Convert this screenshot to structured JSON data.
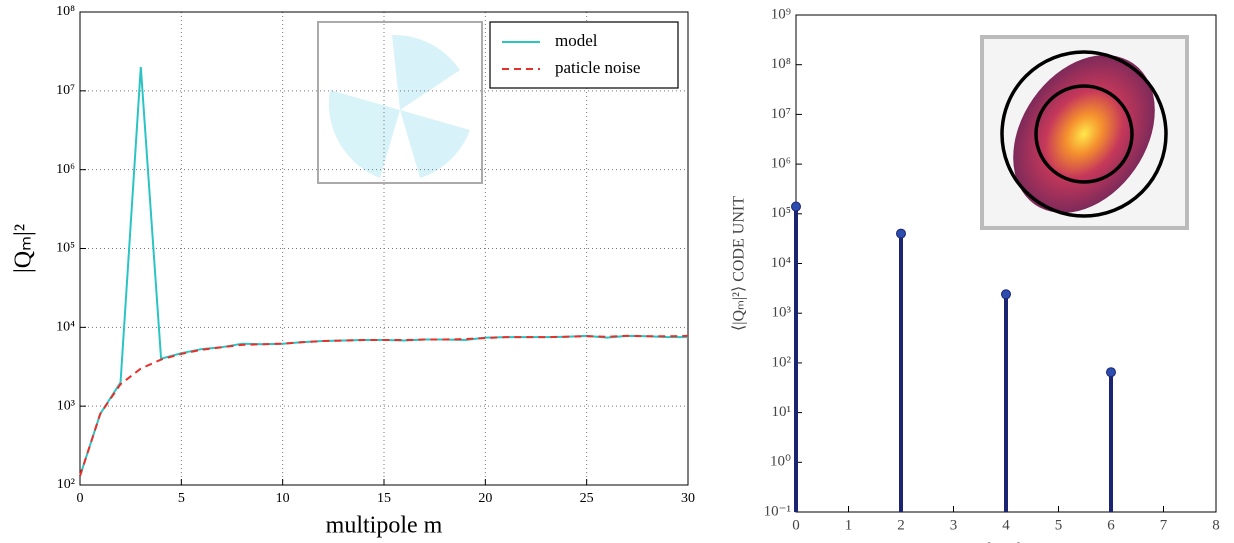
{
  "chart_data": [
    {
      "type": "line",
      "xlabel": "multipole m",
      "ylabel": "|Qₘ|²",
      "x": [
        0,
        1,
        2,
        3,
        4,
        5,
        6,
        7,
        8,
        9,
        10,
        11,
        12,
        13,
        14,
        15,
        16,
        17,
        18,
        19,
        20,
        21,
        22,
        23,
        24,
        25,
        26,
        27,
        28,
        29,
        30
      ],
      "series": [
        {
          "name": "model",
          "color": "#2bc4c4",
          "linestyle": "solid",
          "values": [
            130,
            800,
            2000,
            20000000,
            4000,
            4700,
            5300,
            5600,
            6200,
            6100,
            6200,
            6500,
            6700,
            6800,
            6900,
            6900,
            6800,
            7000,
            7000,
            6900,
            7400,
            7500,
            7500,
            7500,
            7600,
            7800,
            7400,
            7800,
            7700,
            7500,
            7500
          ]
        },
        {
          "name": "paticle noise",
          "color": "#e8302a",
          "linestyle": "dashed",
          "values": [
            130,
            800,
            1900,
            3000,
            3900,
            4600,
            5200,
            5600,
            6000,
            6100,
            6200,
            6500,
            6700,
            6800,
            6900,
            6900,
            6900,
            7000,
            7000,
            7100,
            7300,
            7500,
            7500,
            7500,
            7600,
            7700,
            7600,
            7800,
            7700,
            7700,
            7800
          ]
        }
      ],
      "xlim": [
        0,
        30
      ],
      "xticks": [
        0,
        5,
        10,
        15,
        20,
        25,
        30
      ],
      "ylim": [
        100,
        100000000
      ],
      "yscale": "log",
      "yticks": [
        {
          "value": 100,
          "label": "10²"
        },
        {
          "value": 1000,
          "label": "10³"
        },
        {
          "value": 10000,
          "label": "10⁴"
        },
        {
          "value": 100000,
          "label": "10⁵"
        },
        {
          "value": 1000000,
          "label": "10⁶"
        },
        {
          "value": 10000000,
          "label": "10⁷"
        },
        {
          "value": 100000000,
          "label": "10⁸"
        }
      ],
      "grid": true,
      "legend": "upper right"
    },
    {
      "type": "stem",
      "xlabel": "multipole m",
      "ylabel": "⟨|Qₘ|²⟩ CODE UNIT",
      "x": [
        0,
        2,
        4,
        6
      ],
      "values": [
        140000,
        40000,
        2400,
        65
      ],
      "color": "#1b2470",
      "xlim": [
        0,
        8
      ],
      "xticks": [
        0,
        1,
        2,
        3,
        4,
        5,
        6,
        7,
        8
      ],
      "ylim": [
        0.1,
        1000000000
      ],
      "yscale": "log",
      "yticks": [
        {
          "value": 0.1,
          "label": "10⁻¹"
        },
        {
          "value": 1,
          "label": "10⁰"
        },
        {
          "value": 10,
          "label": "10¹"
        },
        {
          "value": 100,
          "label": "10²"
        },
        {
          "value": 1000,
          "label": "10³"
        },
        {
          "value": 10000,
          "label": "10⁴"
        },
        {
          "value": 100000,
          "label": "10⁵"
        },
        {
          "value": 1000000,
          "label": "10⁶"
        },
        {
          "value": 10000000,
          "label": "10⁷"
        },
        {
          "value": 100000000,
          "label": "10⁸"
        },
        {
          "value": 1000000000,
          "label": "10⁹"
        }
      ],
      "grid": false
    }
  ]
}
